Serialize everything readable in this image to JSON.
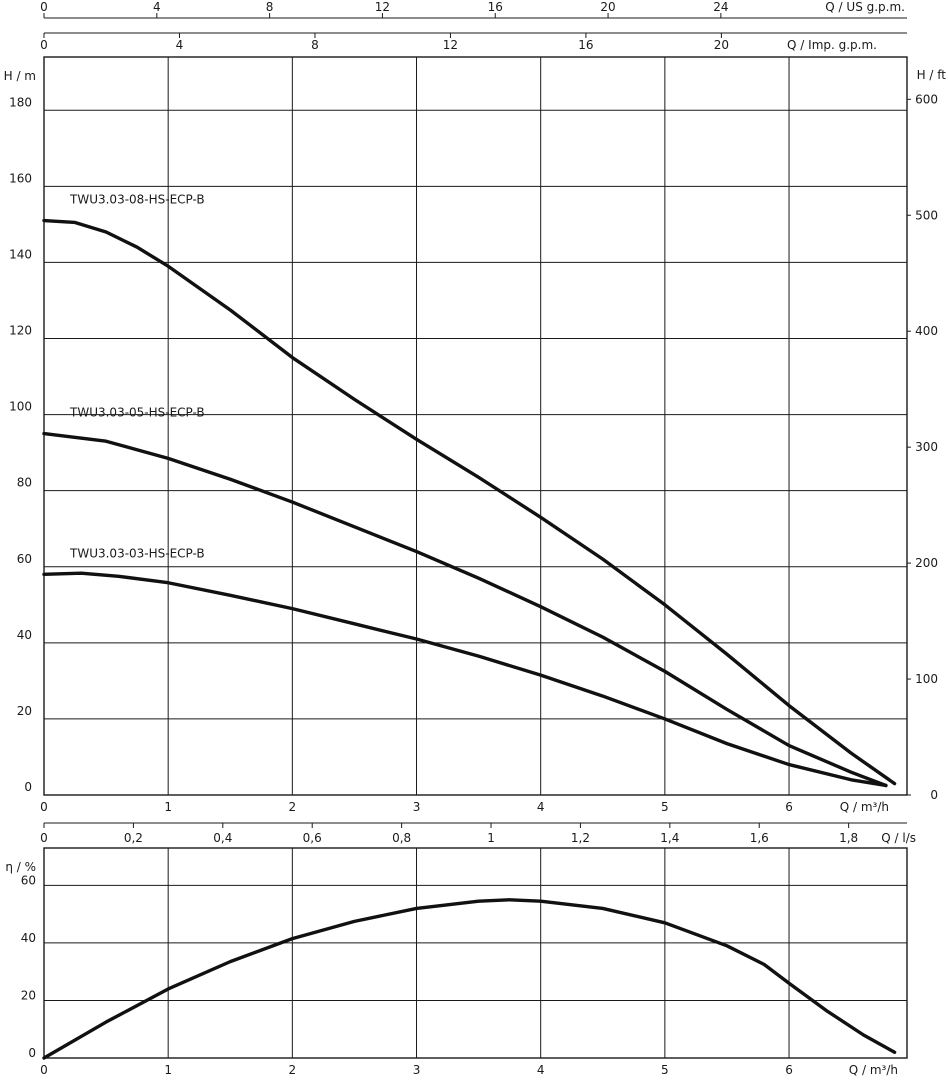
{
  "chart_data": [
    {
      "type": "line",
      "title": "",
      "xlabel": "Q / m³/h",
      "ylabel": "H  / m",
      "ylabel_right": "H  / ft",
      "xlim": [
        0,
        6.95
      ],
      "ylim": [
        0,
        194
      ],
      "x_ticks": [
        "0",
        "1",
        "2",
        "3",
        "4",
        "5",
        "6"
      ],
      "y_ticks": [
        "0",
        "20",
        "40",
        "60",
        "80",
        "100",
        "120",
        "140",
        "160",
        "180"
      ],
      "y_ticks_right": [
        "0",
        "100",
        "200",
        "300",
        "400",
        "500",
        "600"
      ],
      "top_axis_us": {
        "label": "Q  / US g.p.m.",
        "ticks": [
          "0",
          "4",
          "8",
          "12",
          "16",
          "20",
          "24"
        ]
      },
      "top_axis_imp": {
        "label": "Q  / Imp. g.p.m.",
        "ticks": [
          "0",
          "4",
          "8",
          "12",
          "16",
          "20"
        ]
      },
      "bottom_axis_ls": {
        "label": "Q  / l/s",
        "ticks": [
          "0",
          "0,2",
          "0,4",
          "0,6",
          "0,8",
          "1",
          "1,2",
          "1,4",
          "1,6",
          "1,8"
        ]
      },
      "grid": true,
      "series": [
        {
          "name": "TWU3.03-08-HS-ECP-B",
          "x": [
            0,
            0.25,
            0.5,
            0.75,
            1.0,
            1.5,
            2.0,
            2.5,
            3.0,
            3.5,
            4.0,
            4.5,
            5.0,
            5.5,
            6.0,
            6.5,
            6.85
          ],
          "y": [
            151,
            150.5,
            148,
            144,
            139,
            127.5,
            115,
            104,
            93.5,
            83.5,
            73,
            62,
            50,
            37,
            23.5,
            11,
            3
          ]
        },
        {
          "name": "TWU3.03-05-HS-ECP-B",
          "x": [
            0,
            0.5,
            1.0,
            1.5,
            2.0,
            2.5,
            3.0,
            3.5,
            4.0,
            4.5,
            5.0,
            5.5,
            6.0,
            6.5,
            6.78
          ],
          "y": [
            95,
            93,
            88.5,
            83,
            77,
            70.5,
            64,
            57,
            49.5,
            41.5,
            32.5,
            22.5,
            13,
            6,
            2.5
          ]
        },
        {
          "name": "TWU3.03-03-HS-ECP-B",
          "x": [
            0,
            0.3,
            0.6,
            1.0,
            1.5,
            2.0,
            2.5,
            3.0,
            3.5,
            4.0,
            4.5,
            5.0,
            5.5,
            6.0,
            6.5,
            6.78
          ],
          "y": [
            58,
            58.3,
            57.5,
            55.8,
            52.5,
            49,
            45,
            41,
            36.5,
            31.5,
            26,
            20,
            13.5,
            8,
            4,
            2.5
          ]
        }
      ]
    },
    {
      "type": "line",
      "title": "",
      "xlabel": "Q / m³/h",
      "ylabel": "η  / %",
      "xlim": [
        0,
        6.95
      ],
      "ylim": [
        0,
        73
      ],
      "x_ticks": [
        "0",
        "1",
        "2",
        "3",
        "4",
        "5",
        "6"
      ],
      "y_ticks": [
        "0",
        "20",
        "40",
        "60"
      ],
      "grid": true,
      "series": [
        {
          "name": "",
          "x": [
            0,
            0.5,
            1.0,
            1.5,
            2.0,
            2.5,
            3.0,
            3.5,
            3.75,
            4.0,
            4.5,
            5.0,
            5.5,
            5.8,
            6.0,
            6.3,
            6.6,
            6.85
          ],
          "y": [
            0,
            12.5,
            24,
            33.5,
            41.5,
            47.5,
            52,
            54.5,
            55,
            54.5,
            52,
            47,
            39,
            32.5,
            26,
            16.5,
            8,
            2
          ]
        }
      ]
    }
  ]
}
